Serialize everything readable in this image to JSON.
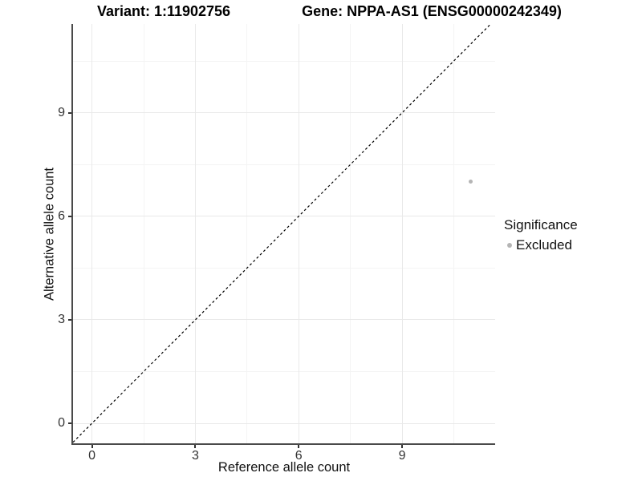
{
  "titles": {
    "variant": "Variant: 1:11902756",
    "gene": "Gene: NPPA-AS1 (ENSG00000242349)"
  },
  "chart_data": {
    "type": "scatter",
    "xlabel": "Reference allele count",
    "ylabel": "Alternative allele count",
    "xticks": [
      0,
      3,
      6,
      9
    ],
    "yticks": [
      0,
      3,
      6,
      9
    ],
    "minor_ticks": [
      1.5,
      4.5,
      7.5,
      10.5
    ],
    "xlim": [
      -0.55,
      11.7
    ],
    "ylim": [
      -0.58,
      11.57
    ],
    "grid": true,
    "identity_line": {
      "style": "dashed",
      "from": -0.55,
      "to": 11.57
    },
    "points": [
      {
        "x": 11,
        "y": 7,
        "series": "Excluded"
      }
    ],
    "legend": {
      "position": "right",
      "title": "Significance",
      "items": [
        {
          "label": "Excluded",
          "color": "#b5b5b5"
        }
      ]
    },
    "colors": {
      "point": "#b5b5b5",
      "grid_major": "#e9e9e9",
      "grid_minor": "#f4f4f4",
      "axis_line": "#4a4a4a",
      "tick_text": "#333333",
      "identity_line": "#000000"
    }
  }
}
